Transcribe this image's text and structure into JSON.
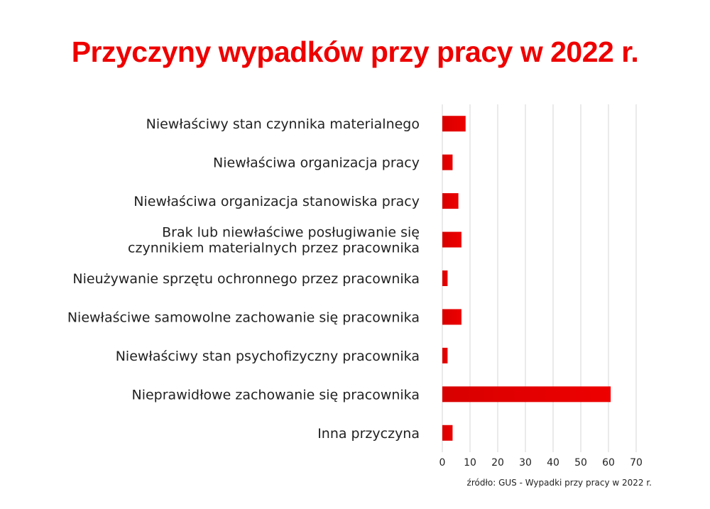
{
  "chart_data": {
    "type": "bar",
    "orientation": "horizontal",
    "title": "Przyczyny wypadków przy pracy w 2022 r.",
    "categories": [
      [
        "Niewłaściwy stan czynnika materialnego"
      ],
      [
        "Niewłaściwa organizacja pracy"
      ],
      [
        "Niewłaściwa organizacja stanowiska pracy"
      ],
      [
        "Brak lub niewłaściwe posługiwanie się",
        "czynnikiem materialnych przez pracownika"
      ],
      [
        "Nieużywanie sprzętu ochronnego przez pracownika"
      ],
      [
        "Niewłaściwe samowolne zachowanie się pracownika"
      ],
      [
        "Niewłaściwy stan psychofizyczny pracownika"
      ],
      [
        "Nieprawidłowe zachowanie się pracownika"
      ],
      [
        "Inna przyczyna"
      ]
    ],
    "values": [
      8.4,
      3.7,
      5.8,
      6.9,
      1.9,
      6.9,
      1.9,
      60.8,
      3.7
    ],
    "xlim": [
      0,
      70
    ],
    "xticks": [
      "0",
      "10",
      "20",
      "30",
      "40",
      "50",
      "60",
      "70"
    ],
    "grid": true,
    "bar_color": "#ee0000",
    "source": "źródło: GUS - Wypadki przy pracy w 2022 r."
  }
}
